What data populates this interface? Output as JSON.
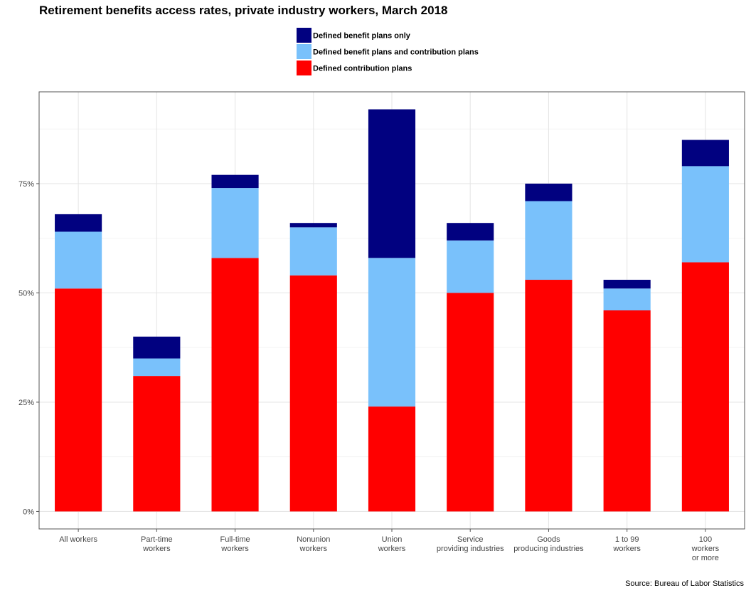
{
  "chart_data": {
    "type": "bar",
    "stacked": true,
    "title": "Retirement benefits access rates, private industry workers, March 2018",
    "source": "Source: Bureau of Labor Statistics",
    "categories": [
      [
        "All workers"
      ],
      [
        "Part-time",
        "workers"
      ],
      [
        "Full-time",
        "workers"
      ],
      [
        "Nonunion",
        "workers"
      ],
      [
        "Union",
        "workers"
      ],
      [
        "Service",
        "providing industries"
      ],
      [
        "Goods",
        "producing industries"
      ],
      [
        "1 to 99",
        "workers"
      ],
      [
        "100",
        "workers",
        "or more"
      ]
    ],
    "series": [
      {
        "name": "Defined contribution plans",
        "color": "#ff0000",
        "values": [
          51,
          31,
          58,
          54,
          24,
          50,
          53,
          46,
          57
        ]
      },
      {
        "name": "Defined benefit plans and contribution plans",
        "color": "#79c1fb",
        "values": [
          13,
          4,
          16,
          11,
          34,
          12,
          18,
          5,
          22
        ]
      },
      {
        "name": "Defined benefit plans only",
        "color": "#010180",
        "values": [
          4,
          5,
          3,
          1,
          34,
          4,
          4,
          2,
          6
        ]
      }
    ],
    "legend_order": [
      2,
      1,
      0
    ],
    "legend_position": "top",
    "ylim": [
      -4,
      96
    ],
    "y_ticks": [
      0,
      25,
      50,
      75
    ],
    "y_tick_labels": [
      "0%",
      "25%",
      "50%",
      "75%"
    ],
    "grid": true,
    "xlabel": "",
    "ylabel": ""
  }
}
